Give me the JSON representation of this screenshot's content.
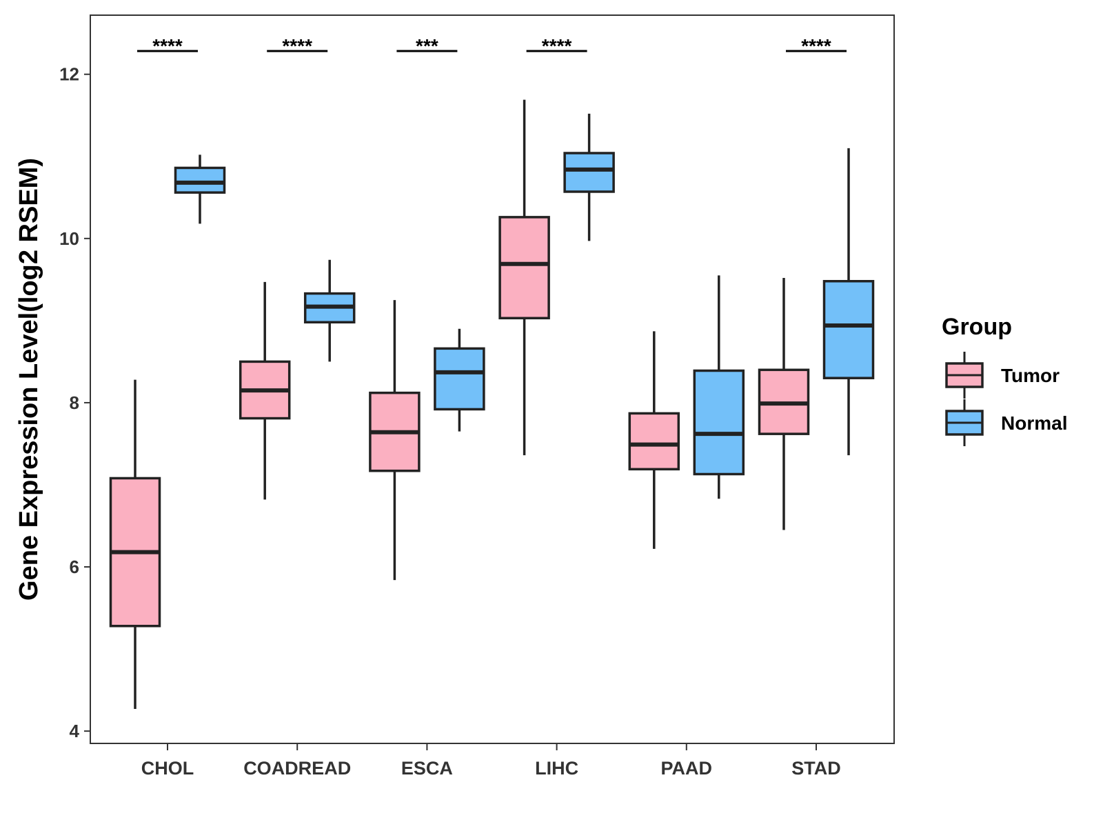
{
  "chart_data": {
    "type": "boxplot",
    "title": "",
    "xlabel": "",
    "ylabel": "Gene Expression Level(log2 RSEM)",
    "ylim": [
      3.85,
      12.72
    ],
    "yticks": [
      4,
      6,
      8,
      10,
      12
    ],
    "grid": false,
    "categories": [
      "CHOL",
      "COADREAD",
      "ESCA",
      "LIHC",
      "PAAD",
      "STAD"
    ],
    "legend": {
      "title": "Group",
      "position": "right",
      "entries": [
        {
          "name": "Tumor",
          "color": "#FBB0C1"
        },
        {
          "name": "Normal",
          "color": "#73C0F9"
        }
      ]
    },
    "significance": [
      "****",
      "****",
      "***",
      "****",
      "",
      "****"
    ],
    "series": [
      {
        "name": "Tumor",
        "color": "#FBB0C1",
        "boxes": [
          {
            "min": 4.27,
            "q1": 5.28,
            "median": 6.18,
            "q3": 7.08,
            "max": 8.28
          },
          {
            "min": 6.82,
            "q1": 7.81,
            "median": 8.15,
            "q3": 8.5,
            "max": 9.47
          },
          {
            "min": 5.84,
            "q1": 7.17,
            "median": 7.64,
            "q3": 8.12,
            "max": 9.25
          },
          {
            "min": 7.36,
            "q1": 9.03,
            "median": 9.69,
            "q3": 10.26,
            "max": 11.69
          },
          {
            "min": 6.22,
            "q1": 7.19,
            "median": 7.49,
            "q3": 7.87,
            "max": 8.87
          },
          {
            "min": 6.45,
            "q1": 7.62,
            "median": 7.99,
            "q3": 8.4,
            "max": 9.52
          }
        ]
      },
      {
        "name": "Normal",
        "color": "#73C0F9",
        "boxes": [
          {
            "min": 10.18,
            "q1": 10.56,
            "median": 10.68,
            "q3": 10.86,
            "max": 11.02
          },
          {
            "min": 8.5,
            "q1": 8.98,
            "median": 9.17,
            "q3": 9.33,
            "max": 9.74
          },
          {
            "min": 7.65,
            "q1": 7.92,
            "median": 8.37,
            "q3": 8.66,
            "max": 8.9
          },
          {
            "min": 9.97,
            "q1": 10.57,
            "median": 10.84,
            "q3": 11.04,
            "max": 11.52
          },
          {
            "min": 6.83,
            "q1": 7.13,
            "median": 7.62,
            "q3": 8.39,
            "max": 9.55
          },
          {
            "min": 7.36,
            "q1": 8.3,
            "median": 8.94,
            "q3": 9.48,
            "max": 11.1
          }
        ]
      }
    ]
  }
}
